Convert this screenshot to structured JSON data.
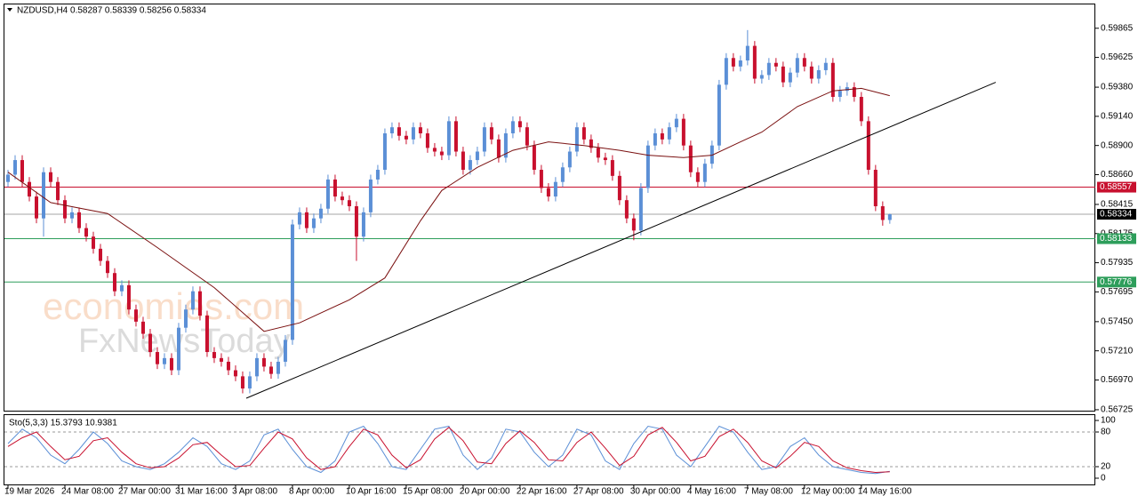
{
  "chart_data": [
    {
      "type": "candlestick",
      "title": "NZDUSD,H4 0.58287 0.58339 0.58256 0.58334",
      "watermark": [
        "economies.com",
        "FxNewsToday"
      ],
      "up_color": "#5b8fd6",
      "down_color": "#c8102e",
      "xlim": [
        -0.5,
        152.9
      ],
      "xticks": [
        {
          "value": 0,
          "label": "19 Mar 2026"
        },
        {
          "value": 8,
          "label": "24 Mar 08:00"
        },
        {
          "value": 16,
          "label": "27 Mar 00:00"
        },
        {
          "value": 24,
          "label": "31 Mar 16:00"
        },
        {
          "value": 32,
          "label": "3 Apr 08:00"
        },
        {
          "value": 40,
          "label": "8 Apr 00:00"
        },
        {
          "value": 48,
          "label": "10 Apr 16:00"
        },
        {
          "value": 56,
          "label": "15 Apr 08:00"
        },
        {
          "value": 64,
          "label": "20 Apr 00:00"
        },
        {
          "value": 72,
          "label": "22 Apr 16:00"
        },
        {
          "value": 80,
          "label": "27 Apr 08:00"
        },
        {
          "value": 88,
          "label": "30 Apr 00:00"
        },
        {
          "value": 96,
          "label": "4 May 16:00"
        },
        {
          "value": 104,
          "label": "7 May 08:00"
        },
        {
          "value": 112,
          "label": "12 May 00:00"
        },
        {
          "value": 120,
          "label": "14 May 16:00"
        }
      ],
      "ylim": [
        0.5671,
        0.60061
      ],
      "yticks": [
        {
          "value": 0.59865,
          "label": "0.59865"
        },
        {
          "value": 0.59625,
          "label": "0.59625"
        },
        {
          "value": 0.5938,
          "label": "0.59380"
        },
        {
          "value": 0.5914,
          "label": "0.59140"
        },
        {
          "value": 0.589,
          "label": "0.58900"
        },
        {
          "value": 0.5866,
          "label": "0.58660"
        },
        {
          "value": 0.58415,
          "label": "0.58415"
        },
        {
          "value": 0.58175,
          "label": "0.58175"
        },
        {
          "value": 0.57935,
          "label": "0.57935"
        },
        {
          "value": 0.57695,
          "label": "0.57695"
        },
        {
          "value": 0.5745,
          "label": "0.57450"
        },
        {
          "value": 0.5721,
          "label": "0.57210"
        },
        {
          "value": 0.5697,
          "label": "0.56970"
        },
        {
          "value": 0.56725,
          "label": "0.56725"
        }
      ],
      "open": [
        0.586,
        0.5866,
        0.5878,
        0.586,
        0.5848,
        0.583,
        0.5868,
        0.586,
        0.5845,
        0.583,
        0.5835,
        0.5822,
        0.5815,
        0.5805,
        0.5795,
        0.5785,
        0.577,
        0.5775,
        0.5755,
        0.5745,
        0.5735,
        0.572,
        0.571,
        0.5715,
        0.5705,
        0.574,
        0.5755,
        0.577,
        0.575,
        0.572,
        0.5715,
        0.5712,
        0.5705,
        0.57,
        0.569,
        0.57,
        0.5715,
        0.5708,
        0.5702,
        0.5712,
        0.573,
        0.5825,
        0.5835,
        0.5822,
        0.583,
        0.5838,
        0.5862,
        0.5848,
        0.5845,
        0.584,
        0.5815,
        0.5835,
        0.5862,
        0.587,
        0.59,
        0.5905,
        0.5898,
        0.5895,
        0.5905,
        0.59,
        0.5888,
        0.5885,
        0.5882,
        0.591,
        0.5885,
        0.587,
        0.5878,
        0.5885,
        0.5905,
        0.5895,
        0.588,
        0.59,
        0.591,
        0.5905,
        0.589,
        0.587,
        0.5855,
        0.5848,
        0.586,
        0.5872,
        0.5885,
        0.5905,
        0.5895,
        0.5888,
        0.588,
        0.5878,
        0.5865,
        0.5845,
        0.583,
        0.582,
        0.5855,
        0.589,
        0.59,
        0.5895,
        0.5905,
        0.5912,
        0.589,
        0.5868,
        0.586,
        0.5875,
        0.589,
        0.594,
        0.5962,
        0.5955,
        0.596,
        0.5972,
        0.5945,
        0.5948,
        0.5958,
        0.5955,
        0.5942,
        0.595,
        0.5962,
        0.5955,
        0.5945,
        0.5952,
        0.5958,
        0.593,
        0.5935,
        0.5938,
        0.593,
        0.591,
        0.587,
        0.584,
        0.58287
      ],
      "high": [
        0.587,
        0.5882,
        0.5882,
        0.5864,
        0.5852,
        0.5872,
        0.5872,
        0.5864,
        0.5849,
        0.5839,
        0.5839,
        0.5826,
        0.5819,
        0.5809,
        0.5799,
        0.5789,
        0.5779,
        0.5779,
        0.5759,
        0.5749,
        0.5739,
        0.5724,
        0.5719,
        0.5719,
        0.5744,
        0.5759,
        0.5774,
        0.5774,
        0.5754,
        0.5724,
        0.5719,
        0.5716,
        0.5709,
        0.5704,
        0.5704,
        0.5719,
        0.5719,
        0.5712,
        0.5716,
        0.5734,
        0.5829,
        0.5839,
        0.5839,
        0.5834,
        0.5842,
        0.5866,
        0.5866,
        0.5852,
        0.5849,
        0.5844,
        0.5839,
        0.5866,
        0.5874,
        0.5904,
        0.5909,
        0.5909,
        0.5902,
        0.5909,
        0.5909,
        0.5904,
        0.5892,
        0.5889,
        0.5914,
        0.5914,
        0.5889,
        0.5882,
        0.5889,
        0.5909,
        0.5909,
        0.5899,
        0.5904,
        0.5914,
        0.5914,
        0.5909,
        0.5894,
        0.5874,
        0.5859,
        0.5864,
        0.5876,
        0.5889,
        0.5909,
        0.5909,
        0.5899,
        0.5892,
        0.5884,
        0.5882,
        0.5869,
        0.5849,
        0.5834,
        0.5859,
        0.5894,
        0.5904,
        0.5904,
        0.5909,
        0.5916,
        0.5916,
        0.5894,
        0.5872,
        0.5879,
        0.5894,
        0.5944,
        0.5966,
        0.5966,
        0.5964,
        0.5985,
        0.5976,
        0.5952,
        0.5962,
        0.5962,
        0.5959,
        0.5954,
        0.5966,
        0.5966,
        0.5959,
        0.5956,
        0.5962,
        0.5962,
        0.5939,
        0.5942,
        0.5942,
        0.5934,
        0.5914,
        0.5874,
        0.5844,
        0.58339
      ],
      "low": [
        0.5856,
        0.5862,
        0.5856,
        0.5844,
        0.5826,
        0.5815,
        0.5856,
        0.5841,
        0.5826,
        0.5826,
        0.5818,
        0.5811,
        0.5801,
        0.5791,
        0.5781,
        0.5766,
        0.5766,
        0.5751,
        0.5741,
        0.5731,
        0.5716,
        0.5706,
        0.5706,
        0.5701,
        0.5701,
        0.5736,
        0.5751,
        0.5746,
        0.5716,
        0.5711,
        0.5708,
        0.5701,
        0.5696,
        0.5686,
        0.5686,
        0.5696,
        0.5704,
        0.5698,
        0.5698,
        0.5708,
        0.5726,
        0.5821,
        0.5818,
        0.5818,
        0.5826,
        0.5834,
        0.5844,
        0.5841,
        0.5836,
        0.5795,
        0.5811,
        0.5831,
        0.5858,
        0.5866,
        0.5896,
        0.5894,
        0.5891,
        0.5891,
        0.5896,
        0.5884,
        0.5881,
        0.5878,
        0.5878,
        0.5881,
        0.5866,
        0.5866,
        0.5874,
        0.5881,
        0.5891,
        0.5876,
        0.5876,
        0.5896,
        0.5901,
        0.5886,
        0.5866,
        0.5851,
        0.5844,
        0.5844,
        0.5856,
        0.5868,
        0.5881,
        0.5891,
        0.5884,
        0.5876,
        0.5874,
        0.5861,
        0.5841,
        0.5826,
        0.5812,
        0.5816,
        0.5851,
        0.5886,
        0.5891,
        0.5891,
        0.5901,
        0.5886,
        0.5864,
        0.5856,
        0.5856,
        0.5871,
        0.5886,
        0.5936,
        0.5951,
        0.5951,
        0.5956,
        0.5941,
        0.5941,
        0.5944,
        0.5951,
        0.5938,
        0.5938,
        0.5946,
        0.5951,
        0.5941,
        0.5941,
        0.5948,
        0.5926,
        0.5926,
        0.5931,
        0.5926,
        0.5906,
        0.5866,
        0.5836,
        0.5824,
        0.58256
      ],
      "close": [
        0.5866,
        0.5878,
        0.586,
        0.5848,
        0.583,
        0.5868,
        0.586,
        0.5845,
        0.583,
        0.5835,
        0.5822,
        0.5815,
        0.5805,
        0.5795,
        0.5785,
        0.577,
        0.5775,
        0.5755,
        0.5745,
        0.5735,
        0.572,
        0.571,
        0.5715,
        0.5705,
        0.574,
        0.5755,
        0.577,
        0.575,
        0.572,
        0.5715,
        0.5712,
        0.5705,
        0.57,
        0.569,
        0.57,
        0.5715,
        0.5708,
        0.5702,
        0.5712,
        0.573,
        0.5825,
        0.5835,
        0.5822,
        0.583,
        0.5838,
        0.5862,
        0.5848,
        0.5845,
        0.584,
        0.5815,
        0.5835,
        0.5862,
        0.587,
        0.59,
        0.5905,
        0.5898,
        0.5895,
        0.5905,
        0.59,
        0.5888,
        0.5885,
        0.5882,
        0.591,
        0.5885,
        0.587,
        0.5878,
        0.5885,
        0.5905,
        0.5895,
        0.588,
        0.59,
        0.591,
        0.5905,
        0.589,
        0.587,
        0.5855,
        0.5848,
        0.586,
        0.5872,
        0.5885,
        0.5905,
        0.5895,
        0.5888,
        0.588,
        0.5878,
        0.5865,
        0.5845,
        0.583,
        0.582,
        0.5855,
        0.589,
        0.59,
        0.5895,
        0.5905,
        0.5912,
        0.589,
        0.5868,
        0.586,
        0.5875,
        0.589,
        0.594,
        0.5962,
        0.5955,
        0.596,
        0.5972,
        0.5945,
        0.5948,
        0.5958,
        0.5955,
        0.5942,
        0.595,
        0.5962,
        0.5955,
        0.5945,
        0.5952,
        0.5958,
        0.593,
        0.5935,
        0.5938,
        0.593,
        0.591,
        0.587,
        0.584,
        0.58287,
        0.58334
      ],
      "ma": {
        "color": "#7a1010",
        "x": [
          0,
          6,
          14,
          21,
          29,
          36,
          41,
          48,
          53,
          58,
          61,
          66,
          71,
          76,
          81,
          86,
          90,
          95,
          99,
          103,
          106,
          111,
          116,
          120,
          124
        ],
        "values": [
          0.5868,
          0.5843,
          0.5834,
          0.5806,
          0.5773,
          0.5737,
          0.5744,
          0.5763,
          0.5781,
          0.5828,
          0.5853,
          0.5872,
          0.5886,
          0.5893,
          0.589,
          0.5886,
          0.5882,
          0.588,
          0.5882,
          0.5893,
          0.5901,
          0.5922,
          0.5935,
          0.5937,
          0.5931
        ]
      },
      "trendline": {
        "color": "#000000",
        "x": [
          33.5,
          138.9
        ],
        "values": [
          0.5682,
          0.5942
        ]
      },
      "price_lines": [
        {
          "value": 0.58557,
          "color": "#c8102e"
        },
        {
          "value": 0.58334,
          "color": "#000000"
        },
        {
          "value": 0.58133,
          "color": "#2e9e5b"
        },
        {
          "value": 0.57776,
          "color": "#2e9e5b"
        }
      ]
    },
    {
      "type": "line",
      "title": "Sto(5,3,3) 15.3793 10.9381",
      "xlim": [
        -0.5,
        152.9
      ],
      "ylim": [
        -10.8,
        110.8
      ],
      "yticks": [
        100,
        80,
        20,
        0
      ],
      "levels": [
        80,
        20
      ],
      "x": [
        0,
        2,
        4,
        6,
        8,
        10,
        12,
        14,
        16,
        18,
        20,
        22,
        24,
        26,
        28,
        30,
        32,
        34,
        36,
        38,
        40,
        42,
        44,
        46,
        48,
        50,
        52,
        54,
        56,
        58,
        60,
        62,
        64,
        66,
        68,
        70,
        72,
        74,
        76,
        78,
        80,
        82,
        84,
        86,
        88,
        90,
        92,
        94,
        96,
        98,
        100,
        102,
        104,
        106,
        108,
        110,
        112,
        114,
        116,
        118,
        120,
        122,
        124
      ],
      "series": [
        {
          "color": "#5b8fd6",
          "values": [
            60,
            85,
            70,
            40,
            25,
            50,
            80,
            60,
            30,
            20,
            15,
            25,
            45,
            70,
            55,
            25,
            15,
            30,
            75,
            85,
            50,
            20,
            10,
            30,
            80,
            90,
            60,
            20,
            15,
            50,
            85,
            90,
            40,
            15,
            35,
            85,
            80,
            45,
            20,
            40,
            85,
            75,
            30,
            15,
            60,
            90,
            85,
            40,
            20,
            55,
            90,
            80,
            45,
            15,
            20,
            55,
            70,
            40,
            20,
            15,
            10,
            8,
            12
          ]
        },
        {
          "color": "#c8102e",
          "values": [
            55,
            70,
            80,
            55,
            32,
            38,
            65,
            70,
            45,
            25,
            18,
            20,
            35,
            58,
            62,
            40,
            20,
            22,
            52,
            80,
            68,
            35,
            15,
            20,
            55,
            85,
            75,
            40,
            18,
            32,
            68,
            88,
            65,
            28,
            25,
            60,
            82,
            62,
            32,
            30,
            62,
            80,
            52,
            22,
            38,
            75,
            88,
            62,
            30,
            38,
            72,
            85,
            62,
            30,
            18,
            38,
            62,
            55,
            30,
            18,
            13,
            10,
            11
          ]
        }
      ]
    }
  ]
}
